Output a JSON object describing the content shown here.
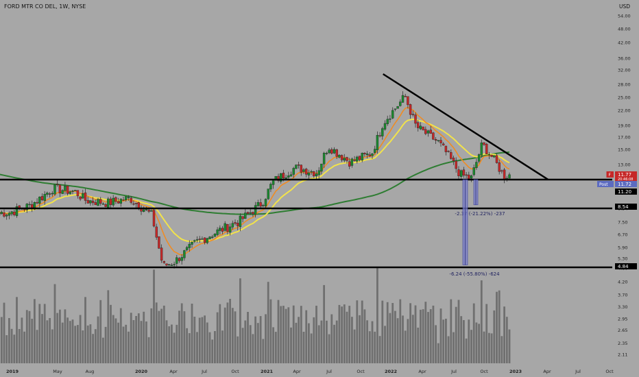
{
  "chart_data": {
    "type": "candlestick",
    "title": "FORD MTR CO DEL, 1W, NYSE",
    "currency": "USD",
    "y_scale": "log",
    "ylim": [
      2.0,
      62.0
    ],
    "y_ticks": [
      "2.11",
      "2.35",
      "2.65",
      "2.95",
      "3.30",
      "3.70",
      "4.20",
      "4.80",
      "5.30",
      "5.90",
      "6.70",
      "7.50",
      "8.54",
      "13.00",
      "15.00",
      "17.00",
      "19.00",
      "22.00",
      "25.00",
      "28.00",
      "32.00",
      "36.00",
      "42.00",
      "48.00",
      "54.00"
    ],
    "x_ticks": [
      "2019",
      "May",
      "Aug",
      "2020",
      "Apr",
      "Jul",
      "Oct",
      "2021",
      "Apr",
      "Jul",
      "Oct",
      "2022",
      "Apr",
      "Jul",
      "Oct",
      "2023",
      "Apr",
      "Jul",
      "Oct"
    ],
    "colors": {
      "up": "#1b8a2f",
      "down": "#c62828",
      "ema_fast": "#f08c22",
      "ema_slow": "#f2e34a",
      "sma_long": "#2e7d32",
      "volume": "#6f6f6f",
      "levels": "#000000",
      "range_box": "#7b7fc8"
    },
    "price_path": [
      [
        "2019-01",
        8.2
      ],
      [
        "2019-03",
        8.8
      ],
      [
        "2019-05",
        10.3
      ],
      [
        "2019-07",
        10.0
      ],
      [
        "2019-08",
        9.2
      ],
      [
        "2019-10",
        9.0
      ],
      [
        "2019-12",
        9.4
      ],
      [
        "2020-02",
        8.0
      ],
      [
        "2020-03",
        4.9
      ],
      [
        "2020-04",
        5.1
      ],
      [
        "2020-06",
        6.2
      ],
      [
        "2020-08",
        6.9
      ],
      [
        "2020-10",
        7.6
      ],
      [
        "2020-12",
        9.0
      ],
      [
        "2021-01",
        11.0
      ],
      [
        "2021-03",
        12.6
      ],
      [
        "2021-05",
        12.0
      ],
      [
        "2021-06",
        15.5
      ],
      [
        "2021-08",
        13.3
      ],
      [
        "2021-10",
        14.5
      ],
      [
        "2021-11",
        19.5
      ],
      [
        "2022-01",
        25.2
      ],
      [
        "2022-02",
        18.8
      ],
      [
        "2022-04",
        16.2
      ],
      [
        "2022-05",
        14.0
      ],
      [
        "2022-06",
        11.8
      ],
      [
        "2022-07",
        11.3
      ],
      [
        "2022-08",
        15.8
      ],
      [
        "2022-09",
        13.8
      ],
      [
        "2022-10",
        11.6
      ],
      [
        "2022-10-20",
        11.77
      ]
    ],
    "levels": [
      11.2,
      8.54,
      4.84
    ],
    "trendline": [
      [
        "2021-11",
        30.8
      ],
      [
        "2023-02",
        11.2
      ]
    ],
    "measurements": [
      {
        "text": "-2.37 (-21.22%) -237",
        "from": 11.2,
        "to": 8.83
      },
      {
        "text": "-6.24 (-55.80%) -624",
        "from": 11.2,
        "to": 4.96
      }
    ],
    "price_labels": [
      {
        "tag": "F",
        "value": "11.77",
        "sub": "20:46:08",
        "color": "#c62828"
      },
      {
        "tag": "Post",
        "value": "11.72",
        "color": "#5c6bc0"
      },
      {
        "value": "11.20",
        "color": "#000000"
      },
      {
        "value": "8.54",
        "color": "#000000"
      },
      {
        "value": "4.84",
        "color": "#000000"
      }
    ]
  }
}
